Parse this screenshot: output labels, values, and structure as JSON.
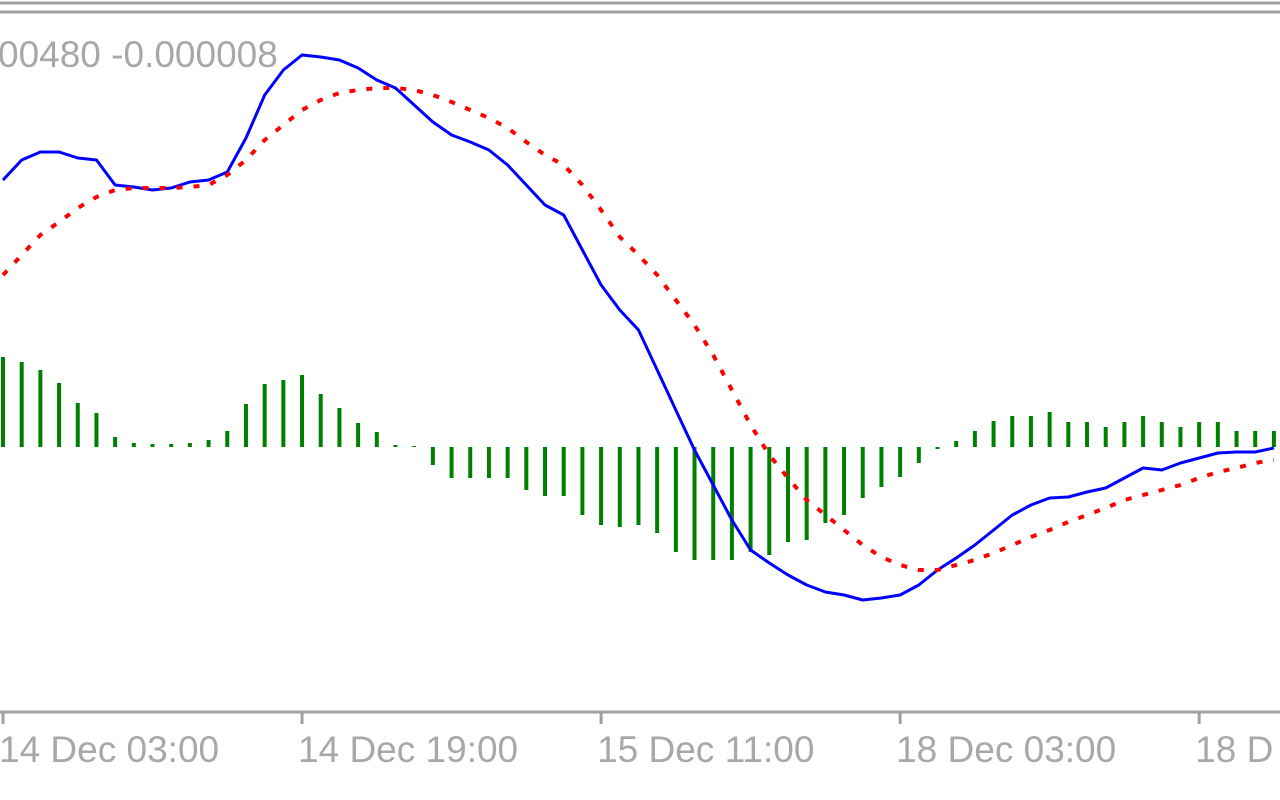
{
  "chart_data": {
    "type": "macd",
    "indicator_label": "00480 -0.000008",
    "categories": [
      "14 Dec 03:00",
      null,
      null,
      null,
      null,
      null,
      null,
      null,
      null,
      null,
      null,
      null,
      null,
      null,
      null,
      null,
      "14 Dec 19:00",
      null,
      null,
      null,
      null,
      null,
      null,
      null,
      null,
      null,
      null,
      null,
      null,
      null,
      null,
      null,
      "15 Dec 11:00",
      null,
      null,
      null,
      null,
      null,
      null,
      null,
      null,
      null,
      null,
      null,
      null,
      null,
      null,
      null,
      "18 Dec 03:00",
      null,
      null,
      null,
      null,
      null,
      null,
      null,
      null,
      null,
      null,
      null,
      null,
      null,
      null,
      null,
      "18 D",
      null,
      null,
      null,
      null
    ],
    "series": [
      {
        "type": "histogram",
        "color": "#008000",
        "values": [
          90,
          85,
          77,
          64,
          44,
          34,
          10,
          4,
          3,
          3,
          4,
          7,
          16,
          43,
          63,
          67,
          72,
          53,
          39,
          24,
          15,
          2,
          1,
          -18,
          -31,
          -31,
          -31,
          -31,
          -43,
          -49,
          -49,
          -68,
          -78,
          -80,
          -78,
          -86,
          -105,
          -113,
          -113,
          -113,
          -105,
          -108,
          -95,
          -93,
          -76,
          -68,
          -51,
          -40,
          -30,
          -16,
          -2,
          6,
          16,
          26,
          31,
          31,
          35,
          25,
          25,
          20,
          25,
          31,
          25,
          20,
          25,
          25,
          16,
          16,
          16
        ]
      },
      {
        "type": "line",
        "color": "#0000ff",
        "values": [
          267,
          287,
          295,
          295,
          289,
          287,
          262,
          260,
          257,
          259,
          265,
          267,
          275,
          309,
          352,
          377,
          392,
          390,
          387,
          379,
          367,
          359,
          342,
          325,
          312,
          305,
          297,
          282,
          262,
          242,
          232,
          197,
          162,
          137,
          117,
          77,
          37,
          -3,
          -38,
          -73,
          -103,
          -116,
          -128,
          -138,
          -145,
          -148,
          -153,
          -151,
          -148,
          -138,
          -123,
          -111,
          -98,
          -83,
          -68,
          -58,
          -51,
          -50,
          -45,
          -41,
          -31,
          -21,
          -23,
          -16,
          -11,
          -6,
          -5,
          -5,
          -1
        ]
      },
      {
        "type": "dotted-line",
        "color": "#ff0000",
        "values": [
          172,
          192,
          212,
          225,
          239,
          250,
          257,
          259,
          259,
          259,
          260,
          262,
          272,
          287,
          307,
          322,
          337,
          347,
          354,
          357,
          359,
          359,
          357,
          352,
          345,
          337,
          329,
          319,
          305,
          292,
          282,
          262,
          237,
          210,
          192,
          172,
          147,
          122,
          92,
          57,
          22,
          -8,
          -31,
          -53,
          -68,
          -83,
          -98,
          -110,
          -118,
          -123,
          -123,
          -118,
          -113,
          -106,
          -98,
          -90,
          -83,
          -75,
          -68,
          -61,
          -53,
          -48,
          -43,
          -38,
          -31,
          -25,
          -21,
          -16,
          -13
        ]
      }
    ],
    "ylim": [
      -265,
      447
    ]
  }
}
